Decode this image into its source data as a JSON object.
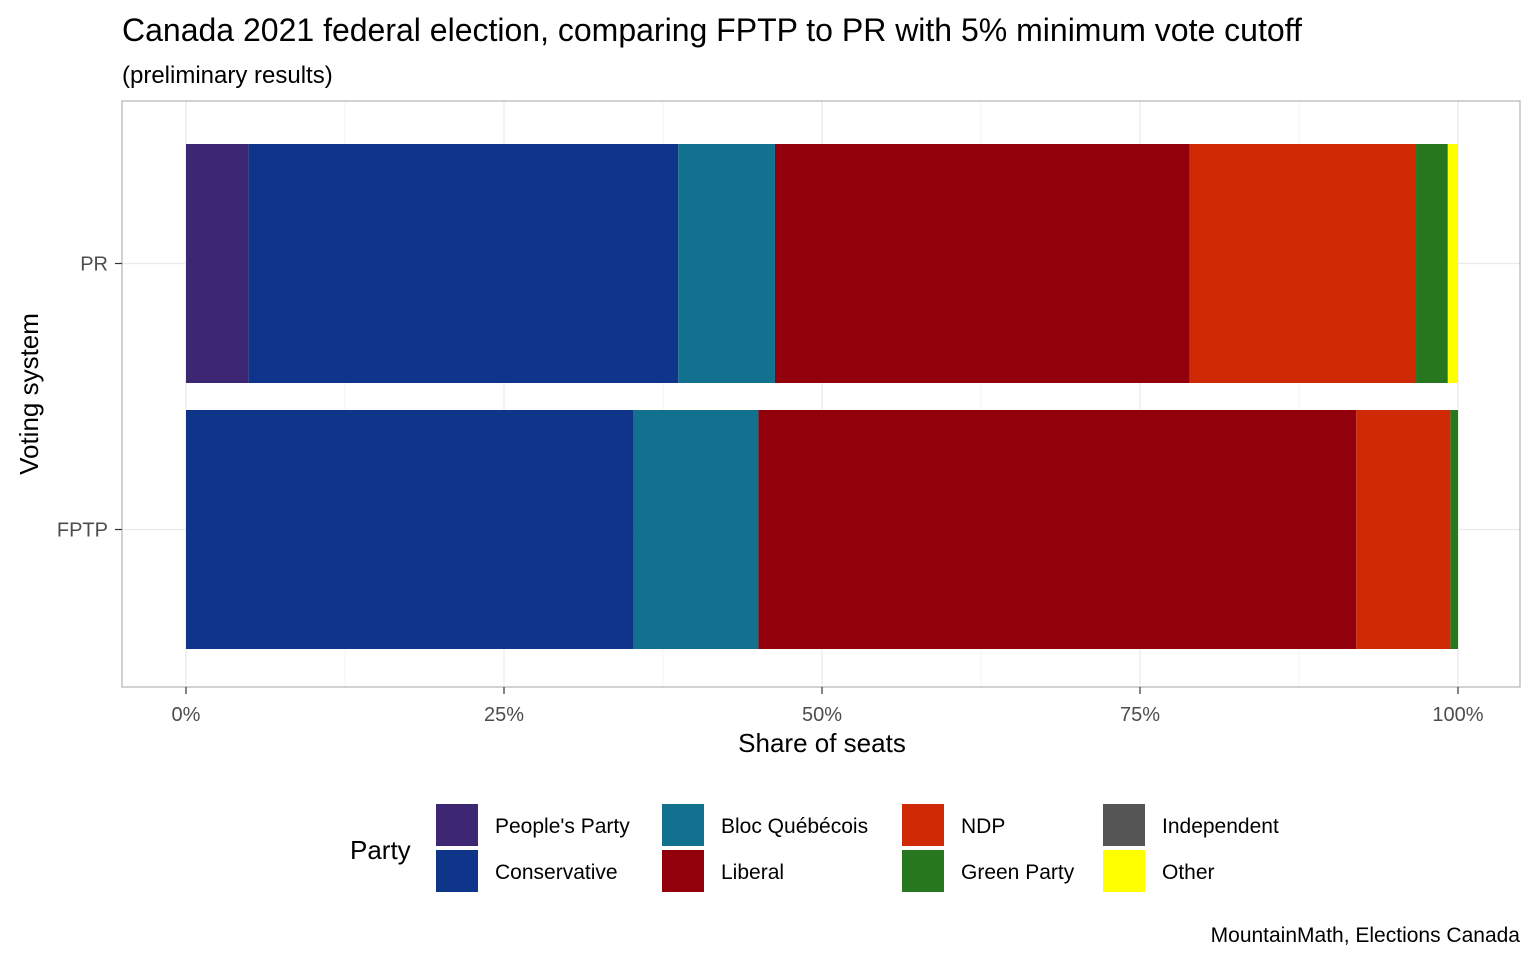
{
  "chart_data": {
    "type": "bar",
    "orientation": "horizontal",
    "stacked": true,
    "title": "Canada 2021 federal election, comparing FPTP to PR with 5% minimum vote cutoff",
    "subtitle": "(preliminary results)",
    "xlabel": "Share of seats",
    "ylabel": "Voting system",
    "xlim": [
      0,
      1
    ],
    "x_ticks": [
      "0%",
      "25%",
      "50%",
      "75%",
      "100%"
    ],
    "categories": [
      "PR",
      "FPTP"
    ],
    "grid": true,
    "legend_position": "bottom",
    "legend_title": "Party",
    "caption": "MountainMath, Elections Canada",
    "series": [
      {
        "name": "People's Party",
        "color": "#3d2672",
        "values": [
          0.049,
          0.0
        ]
      },
      {
        "name": "Conservative",
        "color": "#0e358a",
        "values": [
          0.338,
          0.352
        ]
      },
      {
        "name": "Bloc Québécois",
        "color": "#12718e",
        "values": [
          0.076,
          0.098
        ]
      },
      {
        "name": "Liberal",
        "color": "#92000b",
        "values": [
          0.326,
          0.47
        ]
      },
      {
        "name": "NDP",
        "color": "#cf2906",
        "values": [
          0.178,
          0.074
        ]
      },
      {
        "name": "Green Party",
        "color": "#26771e",
        "values": [
          0.025,
          0.006
        ]
      },
      {
        "name": "Independent",
        "color": "#555555",
        "values": [
          0.0,
          0.0
        ]
      },
      {
        "name": "Other",
        "color": "#ffff00",
        "values": [
          0.008,
          0.0
        ]
      }
    ]
  }
}
